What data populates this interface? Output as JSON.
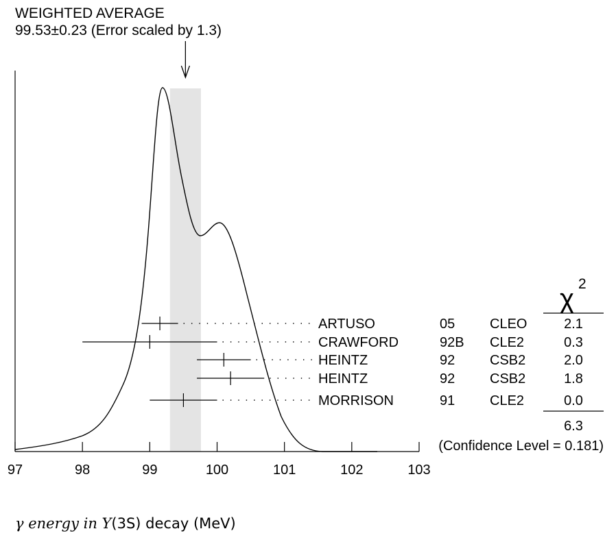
{
  "chart_data": {
    "type": "ideogram",
    "title": "WEIGHTED AVERAGE",
    "subtitle": "99.53±0.23 (Error scaled by 1.3)",
    "weighted_average": {
      "value": 99.53,
      "error": 0.23,
      "error_scale": 1.3
    },
    "xlabel_parts": {
      "pre": "γ energy in ",
      "symbol": "Υ",
      "post": "(3S) decay (MeV)"
    },
    "xlim": [
      97,
      103
    ],
    "xticks": [
      "97",
      "98",
      "99",
      "100",
      "101",
      "102",
      "103"
    ],
    "chi2_header": "χ",
    "chi2_header_sup": "2",
    "measurements": [
      {
        "author": "ARTUSO",
        "year": "05",
        "experiment": "CLEO",
        "value": 99.15,
        "low": 98.88,
        "high": 99.42,
        "chi2": "2.1"
      },
      {
        "author": "CRAWFORD",
        "year": "92B",
        "experiment": "CLE2",
        "value": 99.0,
        "low": 98.0,
        "high": 100.0,
        "chi2": "0.3"
      },
      {
        "author": "HEINTZ",
        "year": "92",
        "experiment": "CSB2",
        "value": 100.1,
        "low": 99.7,
        "high": 100.5,
        "chi2": "2.0"
      },
      {
        "author": "HEINTZ",
        "year": "92",
        "experiment": "CSB2",
        "value": 100.2,
        "low": 99.7,
        "high": 100.7,
        "chi2": "1.8"
      },
      {
        "author": "MORRISON",
        "year": "91",
        "experiment": "CLE2",
        "value": 99.5,
        "low": 99.0,
        "high": 100.0,
        "chi2": "0.0"
      }
    ],
    "chi2_total": "6.3",
    "confidence_level": "(Confidence Level = 0.181)"
  }
}
